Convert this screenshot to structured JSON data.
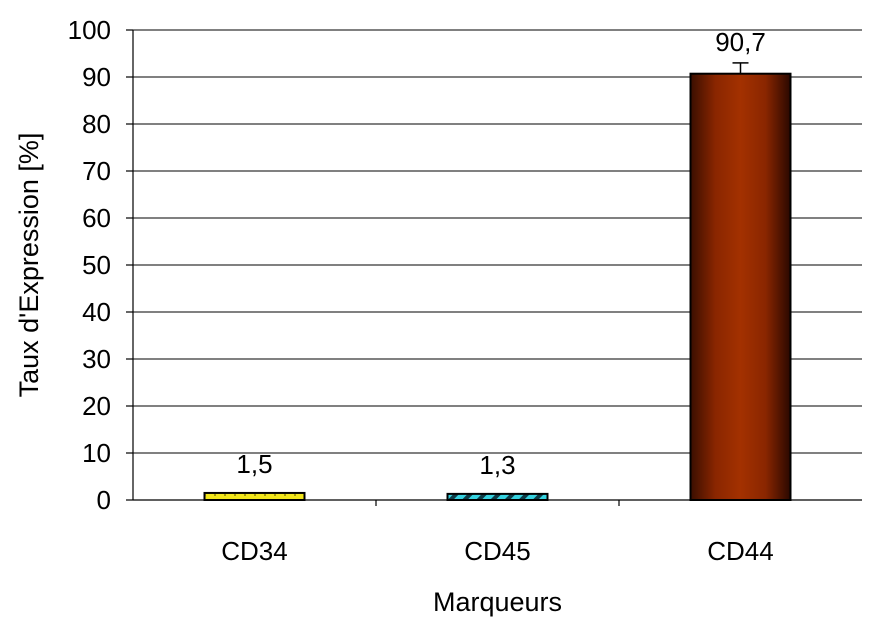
{
  "chart_data": {
    "type": "bar",
    "categories": [
      "CD34",
      "CD45",
      "CD44"
    ],
    "values": [
      1.5,
      1.3,
      90.7
    ],
    "value_labels": [
      "1,5",
      "1,3",
      "90,7"
    ],
    "error_bars": [
      0,
      0,
      2.3
    ],
    "xlabel": "Marqueurs",
    "ylabel": "Taux d'Expression [%]",
    "ylim": [
      0,
      100
    ],
    "yticks": [
      0,
      10,
      20,
      30,
      40,
      50,
      60,
      70,
      80,
      90,
      100
    ],
    "ytick_labels": [
      "0",
      "10",
      "20",
      "30",
      "40",
      "50",
      "60",
      "70",
      "80",
      "90",
      "100"
    ],
    "grid": true,
    "legend": "none",
    "bar_styles": [
      {
        "fill": "#f2e61c",
        "pattern": "dots"
      },
      {
        "fill": "#36d2e0",
        "pattern": "diagonal-stripes"
      },
      {
        "fill": "#9a2a00",
        "pattern": "gradient"
      }
    ]
  }
}
